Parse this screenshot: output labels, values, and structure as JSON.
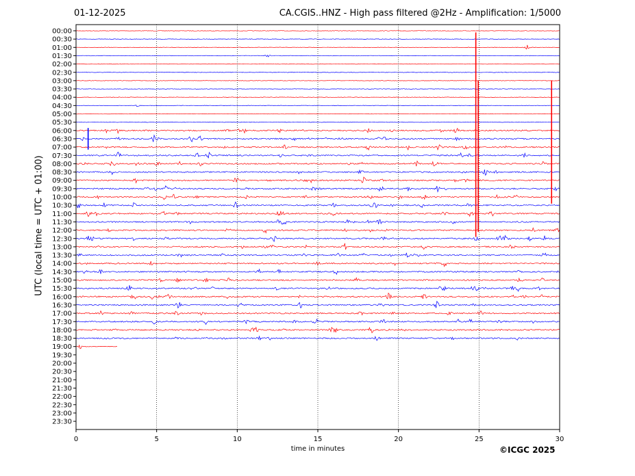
{
  "header": {
    "date": "01-12-2025",
    "title": "CA.CGIS..HNZ - High pass filtered @2Hz - Amplification: 1/5000"
  },
  "footer": {
    "copyright": "©ICGC 2025"
  },
  "chart_data": {
    "type": "line",
    "title": "CA.CGIS..HNZ - High pass filtered @2Hz - Amplification: 1/5000",
    "xlabel": "time in minutes",
    "ylabel": "UTC (local time = UTC + 01:00)",
    "xlim": [
      0,
      30
    ],
    "x_ticks": [
      0,
      5,
      10,
      15,
      20,
      25,
      30
    ],
    "y_ticks": [
      "00:00",
      "00:30",
      "01:00",
      "01:30",
      "02:00",
      "02:30",
      "03:00",
      "03:30",
      "04:00",
      "04:30",
      "05:00",
      "05:30",
      "06:00",
      "06:30",
      "07:00",
      "07:30",
      "08:00",
      "08:30",
      "09:00",
      "09:30",
      "10:00",
      "10:30",
      "11:00",
      "11:30",
      "12:00",
      "12:30",
      "13:00",
      "13:30",
      "14:00",
      "14:30",
      "15:00",
      "15:30",
      "16:00",
      "16:30",
      "17:00",
      "17:30",
      "18:00",
      "18:30",
      "19:00",
      "19:30",
      "20:00",
      "20:30",
      "21:00",
      "21:30",
      "22:00",
      "22:30",
      "23:00",
      "23:30"
    ],
    "grid": "vertical dotted lines at each x tick",
    "trace_colors": [
      "#ff0000",
      "#0000ff"
    ],
    "last_trace_end_minutes": 2.6,
    "traces_with_data": 39
  }
}
